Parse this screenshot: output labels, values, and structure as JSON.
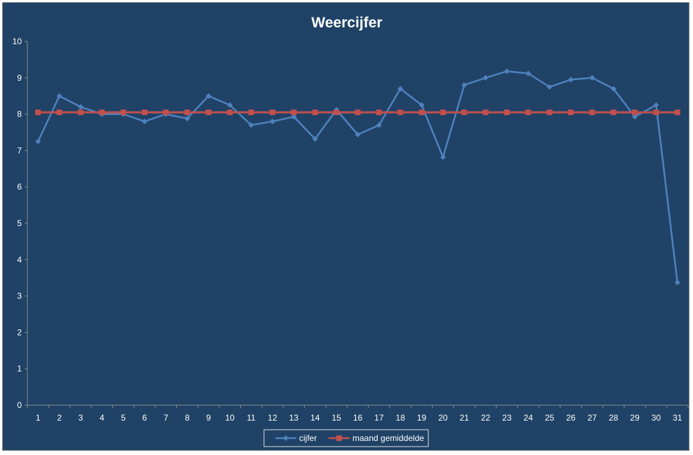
{
  "chart_data": {
    "type": "line",
    "title": "Weercijfer",
    "xlabel": "",
    "ylabel": "",
    "categories": [
      "1",
      "2",
      "3",
      "4",
      "5",
      "6",
      "7",
      "8",
      "9",
      "10",
      "11",
      "12",
      "13",
      "14",
      "15",
      "16",
      "17",
      "18",
      "19",
      "20",
      "21",
      "22",
      "23",
      "24",
      "25",
      "26",
      "27",
      "28",
      "29",
      "30",
      "31"
    ],
    "ylim": [
      0,
      10
    ],
    "yticks": [
      0,
      1,
      2,
      3,
      4,
      5,
      6,
      7,
      8,
      9,
      10
    ],
    "grid": false,
    "legend_position": "bottom",
    "series": [
      {
        "name": "cijfer",
        "color": "#4f81bd",
        "marker": "diamond",
        "values": [
          7.25,
          8.5,
          8.2,
          8.0,
          8.0,
          7.8,
          8.0,
          7.88,
          8.5,
          8.25,
          7.7,
          7.8,
          7.93,
          7.32,
          8.12,
          7.44,
          7.7,
          8.7,
          8.25,
          6.82,
          8.8,
          9.0,
          9.18,
          9.12,
          8.75,
          8.95,
          9.0,
          8.7,
          7.93,
          8.25,
          3.37
        ]
      },
      {
        "name": "maand gemiddelde",
        "color": "#c0504d",
        "marker": "square",
        "values": [
          8.05,
          8.05,
          8.05,
          8.05,
          8.05,
          8.05,
          8.05,
          8.05,
          8.05,
          8.05,
          8.05,
          8.05,
          8.05,
          8.05,
          8.05,
          8.05,
          8.05,
          8.05,
          8.05,
          8.05,
          8.05,
          8.05,
          8.05,
          8.05,
          8.05,
          8.05,
          8.05,
          8.05,
          8.05,
          8.05,
          8.05
        ]
      }
    ]
  }
}
